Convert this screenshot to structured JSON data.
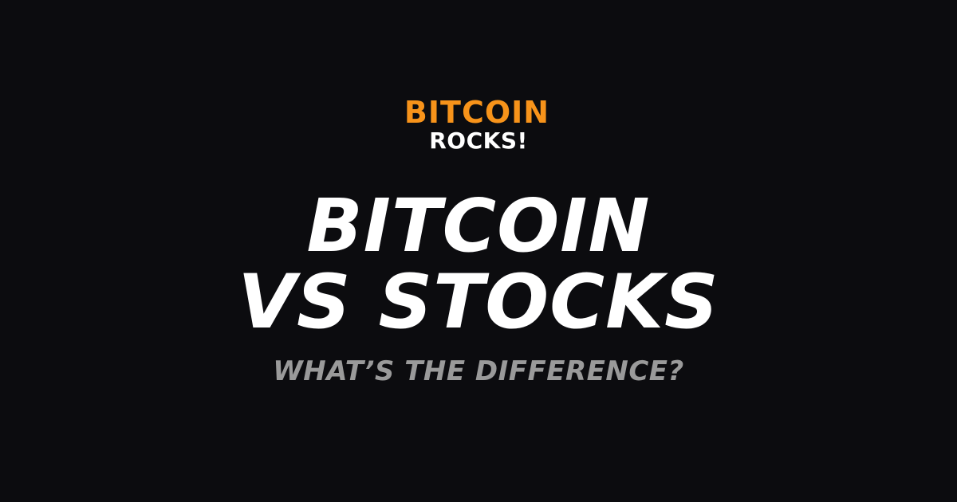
{
  "logo": {
    "line1": "BITCOIN",
    "line2": "ROCKS!"
  },
  "headline": {
    "line1": "BITCOIN",
    "line2": "VS STOCKS"
  },
  "subtitle": "WHAT’S THE DIFFERENCE?",
  "colors": {
    "background": "#0c0c0f",
    "accent": "#f7931a",
    "headline": "#ffffff",
    "subtitle": "#9a9a9a"
  }
}
